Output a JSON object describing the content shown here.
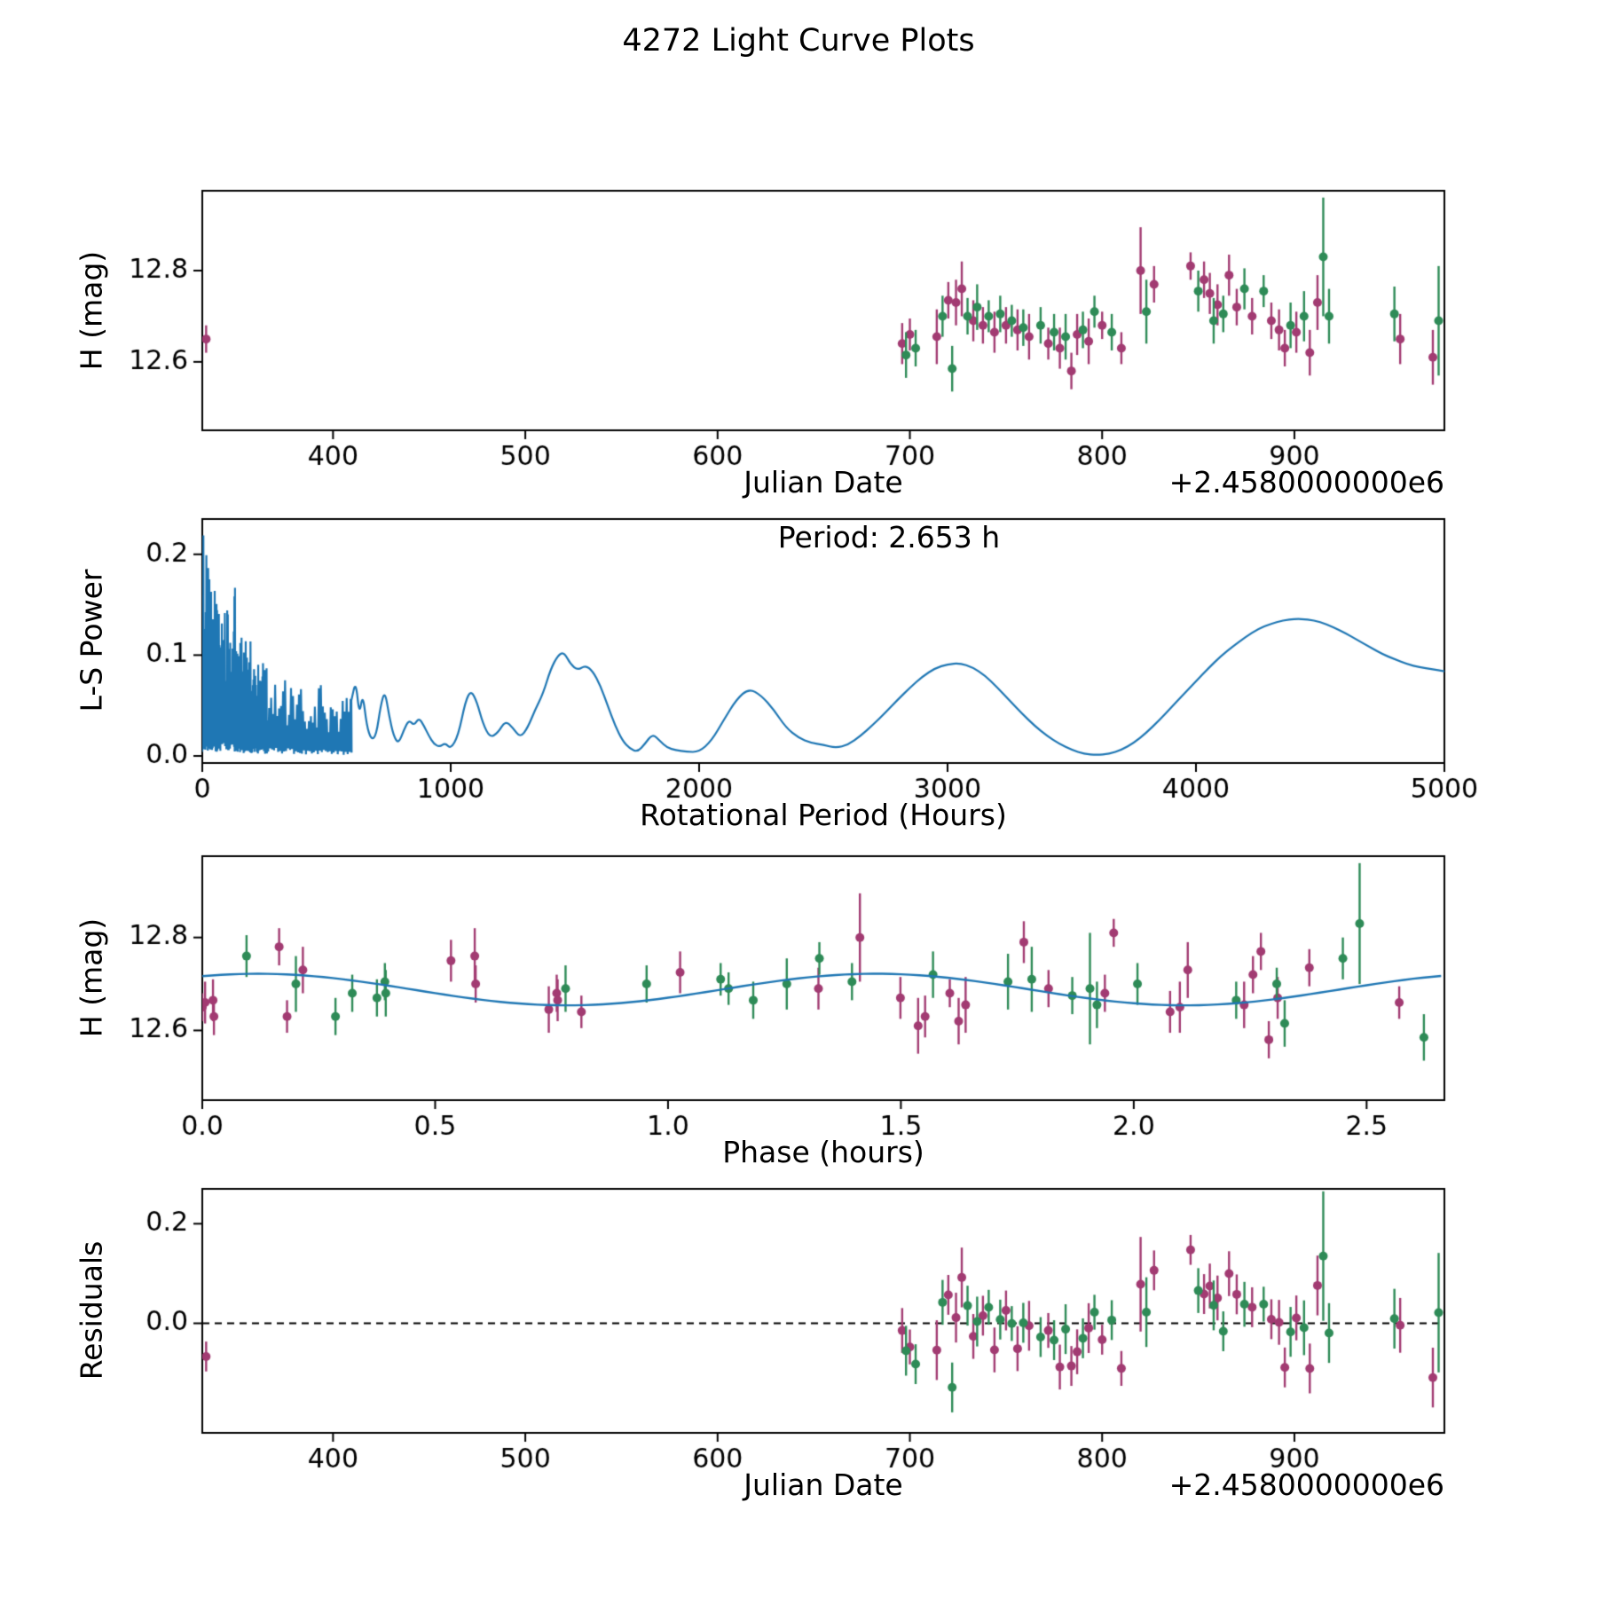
{
  "figure_title": "4272 Light Curve Plots",
  "colors": {
    "magenta_series": "#a23b72",
    "green_series": "#2e8b57",
    "line": "#1f77b4",
    "axis": "#000000"
  },
  "chart_data": [
    {
      "id": "lightcurve",
      "type": "scatter",
      "xlabel": "Julian Date",
      "ylabel": "H (mag)",
      "x_offset_label": "+2.4580000000e6",
      "xlim": [
        332,
        978
      ],
      "ylim": [
        12.45,
        12.975
      ],
      "xticks": [
        400,
        500,
        600,
        700,
        800,
        900
      ],
      "xtick_labels": [
        "400",
        "500",
        "600",
        "700",
        "800",
        "900"
      ],
      "yticks": [
        12.6,
        12.8
      ],
      "ytick_labels": [
        "12.6",
        "12.8"
      ],
      "legend": "none",
      "series": [
        {
          "name": "observations-magenta",
          "color_key": "magenta_series",
          "points": [
            [
              334,
              12.65,
              0.03
            ],
            [
              696,
              12.64,
              0.045
            ],
            [
              700,
              12.66,
              0.035
            ],
            [
              714,
              12.655,
              0.06
            ],
            [
              720,
              12.735,
              0.04
            ],
            [
              724,
              12.73,
              0.05
            ],
            [
              727,
              12.76,
              0.06
            ],
            [
              733,
              12.69,
              0.045
            ],
            [
              738,
              12.68,
              0.04
            ],
            [
              744,
              12.665,
              0.045
            ],
            [
              750,
              12.68,
              0.04
            ],
            [
              756,
              12.67,
              0.045
            ],
            [
              762,
              12.655,
              0.05
            ],
            [
              772,
              12.64,
              0.035
            ],
            [
              778,
              12.63,
              0.045
            ],
            [
              784,
              12.58,
              0.04
            ],
            [
              787,
              12.66,
              0.045
            ],
            [
              793,
              12.645,
              0.05
            ],
            [
              800,
              12.68,
              0.03
            ],
            [
              810,
              12.63,
              0.035
            ],
            [
              820,
              12.8,
              0.095
            ],
            [
              827,
              12.77,
              0.04
            ],
            [
              846,
              12.81,
              0.03
            ],
            [
              853,
              12.78,
              0.04
            ],
            [
              856,
              12.75,
              0.045
            ],
            [
              860,
              12.725,
              0.045
            ],
            [
              866,
              12.79,
              0.045
            ],
            [
              870,
              12.72,
              0.04
            ],
            [
              878,
              12.7,
              0.04
            ],
            [
              888,
              12.69,
              0.04
            ],
            [
              892,
              12.67,
              0.045
            ],
            [
              895,
              12.63,
              0.04
            ],
            [
              901,
              12.665,
              0.045
            ],
            [
              908,
              12.62,
              0.05
            ],
            [
              912,
              12.73,
              0.06
            ],
            [
              955,
              12.65,
              0.055
            ],
            [
              972,
              12.61,
              0.06
            ]
          ]
        },
        {
          "name": "observations-green",
          "color_key": "green_series",
          "points": [
            [
              698,
              12.615,
              0.05
            ],
            [
              703,
              12.63,
              0.04
            ],
            [
              717,
              12.7,
              0.045
            ],
            [
              722,
              12.585,
              0.05
            ],
            [
              730,
              12.7,
              0.04
            ],
            [
              735,
              12.72,
              0.05
            ],
            [
              741,
              12.7,
              0.035
            ],
            [
              747,
              12.705,
              0.04
            ],
            [
              753,
              12.69,
              0.035
            ],
            [
              759,
              12.675,
              0.04
            ],
            [
              768,
              12.68,
              0.04
            ],
            [
              775,
              12.665,
              0.04
            ],
            [
              781,
              12.655,
              0.05
            ],
            [
              790,
              12.67,
              0.04
            ],
            [
              796,
              12.71,
              0.035
            ],
            [
              805,
              12.665,
              0.04
            ],
            [
              823,
              12.71,
              0.07
            ],
            [
              850,
              12.755,
              0.045
            ],
            [
              858,
              12.69,
              0.05
            ],
            [
              863,
              12.705,
              0.04
            ],
            [
              874,
              12.76,
              0.045
            ],
            [
              884,
              12.755,
              0.035
            ],
            [
              898,
              12.68,
              0.05
            ],
            [
              905,
              12.7,
              0.055
            ],
            [
              915,
              12.83,
              0.13
            ],
            [
              918,
              12.7,
              0.06
            ],
            [
              952,
              12.705,
              0.06
            ],
            [
              975,
              12.69,
              0.12
            ]
          ]
        }
      ]
    },
    {
      "id": "periodogram",
      "type": "line",
      "xlabel": "Rotational Period (Hours)",
      "ylabel": "L-S Power",
      "annotation": "Period: 2.653 h",
      "xlim": [
        0,
        5000
      ],
      "ylim": [
        -0.007,
        0.235
      ],
      "xticks": [
        0,
        1000,
        2000,
        3000,
        4000,
        5000
      ],
      "xtick_labels": [
        "0",
        "1000",
        "2000",
        "3000",
        "4000",
        "5000"
      ],
      "yticks": [
        0,
        0.1,
        0.2
      ],
      "ytick_labels": [
        "0.0",
        "0.1",
        "0.2"
      ],
      "noise_envelope": [
        [
          0,
          0.02
        ],
        [
          4,
          0.235
        ],
        [
          12,
          0.205
        ],
        [
          25,
          0.19
        ],
        [
          40,
          0.17
        ],
        [
          60,
          0.175
        ],
        [
          80,
          0.16
        ],
        [
          100,
          0.145
        ],
        [
          120,
          0.13
        ],
        [
          135,
          0.19
        ],
        [
          150,
          0.125
        ],
        [
          170,
          0.11
        ],
        [
          185,
          0.13
        ],
        [
          200,
          0.105
        ],
        [
          220,
          0.095
        ],
        [
          240,
          0.1
        ],
        [
          260,
          0.09
        ],
        [
          280,
          0.082
        ],
        [
          300,
          0.078
        ],
        [
          320,
          0.072
        ],
        [
          340,
          0.078
        ],
        [
          360,
          0.068
        ],
        [
          380,
          0.062
        ],
        [
          400,
          0.068
        ],
        [
          420,
          0.058
        ],
        [
          440,
          0.062
        ],
        [
          460,
          0.052
        ],
        [
          480,
          0.088
        ],
        [
          500,
          0.062
        ],
        [
          520,
          0.052
        ],
        [
          540,
          0.066
        ],
        [
          560,
          0.056
        ],
        [
          580,
          0.06
        ],
        [
          600,
          0.058
        ]
      ],
      "curve": [
        [
          600,
          0.055
        ],
        [
          618,
          0.075
        ],
        [
          632,
          0.04
        ],
        [
          646,
          0.062
        ],
        [
          662,
          0.03
        ],
        [
          680,
          0.016
        ],
        [
          700,
          0.02
        ],
        [
          718,
          0.05
        ],
        [
          735,
          0.065
        ],
        [
          752,
          0.04
        ],
        [
          770,
          0.02
        ],
        [
          790,
          0.012
        ],
        [
          812,
          0.026
        ],
        [
          832,
          0.036
        ],
        [
          852,
          0.03
        ],
        [
          872,
          0.038
        ],
        [
          892,
          0.03
        ],
        [
          912,
          0.02
        ],
        [
          932,
          0.012
        ],
        [
          955,
          0.009
        ],
        [
          978,
          0.013
        ],
        [
          1000,
          0.007
        ],
        [
          1030,
          0.02
        ],
        [
          1060,
          0.055
        ],
        [
          1082,
          0.065
        ],
        [
          1105,
          0.054
        ],
        [
          1130,
          0.032
        ],
        [
          1158,
          0.018
        ],
        [
          1190,
          0.023
        ],
        [
          1220,
          0.035
        ],
        [
          1250,
          0.028
        ],
        [
          1280,
          0.018
        ],
        [
          1310,
          0.028
        ],
        [
          1340,
          0.046
        ],
        [
          1372,
          0.062
        ],
        [
          1402,
          0.086
        ],
        [
          1432,
          0.1
        ],
        [
          1456,
          0.103
        ],
        [
          1482,
          0.091
        ],
        [
          1512,
          0.085
        ],
        [
          1542,
          0.09
        ],
        [
          1572,
          0.084
        ],
        [
          1602,
          0.07
        ],
        [
          1632,
          0.05
        ],
        [
          1662,
          0.03
        ],
        [
          1692,
          0.015
        ],
        [
          1722,
          0.007
        ],
        [
          1752,
          0.004
        ],
        [
          1782,
          0.012
        ],
        [
          1812,
          0.022
        ],
        [
          1842,
          0.015
        ],
        [
          1872,
          0.008
        ],
        [
          1905,
          0.006
        ],
        [
          1950,
          0.004
        ],
        [
          2000,
          0.004
        ],
        [
          2050,
          0.015
        ],
        [
          2100,
          0.036
        ],
        [
          2150,
          0.056
        ],
        [
          2200,
          0.067
        ],
        [
          2250,
          0.06
        ],
        [
          2300,
          0.046
        ],
        [
          2350,
          0.028
        ],
        [
          2400,
          0.018
        ],
        [
          2450,
          0.013
        ],
        [
          2500,
          0.011
        ],
        [
          2550,
          0.008
        ],
        [
          2600,
          0.011
        ],
        [
          2650,
          0.02
        ],
        [
          2700,
          0.031
        ],
        [
          2750,
          0.043
        ],
        [
          2800,
          0.056
        ],
        [
          2850,
          0.068
        ],
        [
          2900,
          0.079
        ],
        [
          2950,
          0.087
        ],
        [
          3000,
          0.091
        ],
        [
          3050,
          0.092
        ],
        [
          3100,
          0.088
        ],
        [
          3150,
          0.08
        ],
        [
          3200,
          0.068
        ],
        [
          3250,
          0.055
        ],
        [
          3300,
          0.042
        ],
        [
          3350,
          0.03
        ],
        [
          3400,
          0.02
        ],
        [
          3450,
          0.012
        ],
        [
          3500,
          0.006
        ],
        [
          3550,
          0.002
        ],
        [
          3600,
          0.001
        ],
        [
          3650,
          0.002
        ],
        [
          3700,
          0.006
        ],
        [
          3750,
          0.013
        ],
        [
          3800,
          0.023
        ],
        [
          3850,
          0.035
        ],
        [
          3900,
          0.048
        ],
        [
          3950,
          0.061
        ],
        [
          4000,
          0.074
        ],
        [
          4050,
          0.087
        ],
        [
          4100,
          0.099
        ],
        [
          4150,
          0.109
        ],
        [
          4200,
          0.118
        ],
        [
          4250,
          0.126
        ],
        [
          4300,
          0.131
        ],
        [
          4350,
          0.1345
        ],
        [
          4400,
          0.136
        ],
        [
          4450,
          0.1355
        ],
        [
          4500,
          0.133
        ],
        [
          4550,
          0.128
        ],
        [
          4600,
          0.122
        ],
        [
          4650,
          0.115
        ],
        [
          4700,
          0.108
        ],
        [
          4750,
          0.101
        ],
        [
          4800,
          0.096
        ],
        [
          4850,
          0.091
        ],
        [
          4900,
          0.088
        ],
        [
          4950,
          0.086
        ],
        [
          5000,
          0.084
        ]
      ]
    },
    {
      "id": "phase-folded",
      "type": "scatter-fit",
      "xlabel": "Phase (hours)",
      "ylabel": "H (mag)",
      "xlim": [
        0,
        2.667
      ],
      "ylim": [
        12.45,
        12.975
      ],
      "xticks": [
        0,
        0.5,
        1,
        1.5,
        2,
        2.5
      ],
      "xtick_labels": [
        "0.0",
        "0.5",
        "1.0",
        "1.5",
        "2.0",
        "2.5"
      ],
      "yticks": [
        12.6,
        12.8
      ],
      "ytick_labels": [
        "12.6",
        "12.8"
      ],
      "fit": {
        "mean": 12.688,
        "amplitude": 0.034,
        "fold_period_hours": 2.653,
        "curve_period_hours": 1.3265,
        "phase_of_max": 0.12,
        "epoch_jd": 334
      },
      "points_source": "chart_data[0].series folded at fold_period_hours"
    },
    {
      "id": "residuals",
      "type": "scatter",
      "xlabel": "Julian Date",
      "ylabel": "Residuals",
      "x_offset_label": "+2.4580000000e6",
      "xlim": [
        332,
        978
      ],
      "ylim": [
        -0.22,
        0.27
      ],
      "xticks": [
        400,
        500,
        600,
        700,
        800,
        900
      ],
      "xtick_labels": [
        "400",
        "500",
        "600",
        "700",
        "800",
        "900"
      ],
      "yticks": [
        0,
        0.2
      ],
      "ytick_labels": [
        "0.0",
        "0.2"
      ],
      "zero_line": true,
      "points_source": "chart_data[0].series magnitudes minus fit model"
    }
  ]
}
